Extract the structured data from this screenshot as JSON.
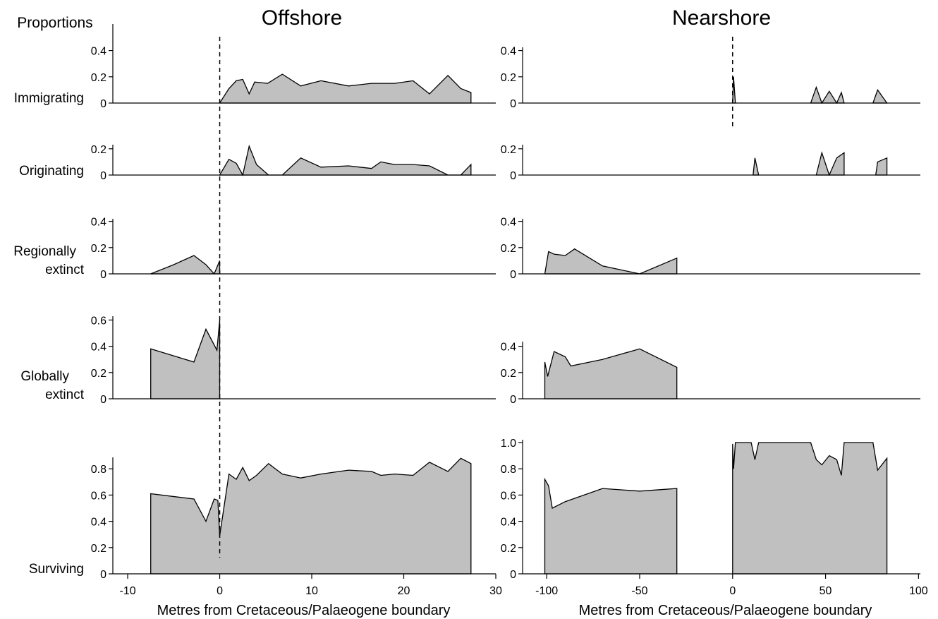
{
  "figure": {
    "y_axis_title": "Proportions",
    "columns": [
      {
        "id": "offshore",
        "title": "Offshore",
        "xlabel": "Metres from Cretaceous/Palaeogene boundary",
        "xlim": [
          -11,
          30
        ],
        "xticks": [
          -10,
          0,
          10,
          20,
          30
        ],
        "xtick_labels": [
          "-10",
          "0",
          "10",
          "20",
          "30"
        ]
      },
      {
        "id": "nearshore",
        "title": "Nearshore",
        "xlabel": "Metres from Cretaceous/Palaeogene boundary",
        "xlim": [
          -105,
          101
        ],
        "xticks": [
          -100,
          -50,
          0,
          50,
          100
        ],
        "xtick_labels": [
          "-100",
          "-50",
          "0",
          "50",
          "100"
        ]
      }
    ],
    "rows": [
      {
        "id": "immigrating",
        "label_lines": [
          "Immigrating"
        ]
      },
      {
        "id": "originating",
        "label_lines": [
          "Originating"
        ]
      },
      {
        "id": "regionally",
        "label_lines": [
          "Regionally",
          "extinct"
        ]
      },
      {
        "id": "globally",
        "label_lines": [
          "Globally",
          "extinct"
        ]
      },
      {
        "id": "surviving",
        "label_lines": [
          "Surviving"
        ]
      }
    ]
  },
  "chart_data": [
    {
      "type": "area",
      "column": "offshore",
      "row": "immigrating",
      "ylim": [
        0,
        0.45
      ],
      "yticks": [
        0,
        0.2,
        0.4
      ],
      "ytick_labels": [
        "0",
        "0.2",
        "0.4"
      ],
      "polygons": [
        [
          [
            0,
            0
          ],
          [
            1,
            0.11
          ],
          [
            1.8,
            0.17
          ],
          [
            2.5,
            0.18
          ],
          [
            3.2,
            0.07
          ],
          [
            3.8,
            0.16
          ],
          [
            5.2,
            0.15
          ],
          [
            6.8,
            0.22
          ],
          [
            8.8,
            0.13
          ],
          [
            11,
            0.17
          ],
          [
            14,
            0.13
          ],
          [
            16.5,
            0.15
          ],
          [
            17.5,
            0.15
          ],
          [
            19,
            0.15
          ],
          [
            21,
            0.17
          ],
          [
            22.8,
            0.07
          ],
          [
            24.8,
            0.21
          ],
          [
            26.2,
            0.11
          ],
          [
            27.3,
            0.08
          ],
          [
            27.3,
            0
          ]
        ]
      ]
    },
    {
      "type": "area",
      "column": "nearshore",
      "row": "immigrating",
      "ylim": [
        0,
        0.45
      ],
      "yticks": [
        0,
        0.2,
        0.4
      ],
      "ytick_labels": [
        "0",
        "0.2",
        "0.4"
      ],
      "polygons": [
        [
          [
            0,
            0
          ],
          [
            0.5,
            0.2
          ],
          [
            1.5,
            0
          ]
        ],
        [
          [
            42,
            0
          ],
          [
            45,
            0.12
          ],
          [
            48,
            0
          ]
        ],
        [
          [
            48,
            0
          ],
          [
            52,
            0.09
          ],
          [
            56,
            0
          ]
        ],
        [
          [
            56,
            0
          ],
          [
            58.5,
            0.08
          ],
          [
            60,
            0
          ]
        ],
        [
          [
            75.5,
            0
          ],
          [
            78,
            0.1
          ],
          [
            83,
            0
          ]
        ]
      ]
    },
    {
      "type": "area",
      "column": "offshore",
      "row": "originating",
      "ylim": [
        0,
        0.22
      ],
      "yticks": [
        0,
        0.2
      ],
      "ytick_labels": [
        "0",
        "0.2"
      ],
      "polygons": [
        [
          [
            0,
            0
          ],
          [
            1,
            0.12
          ],
          [
            1.8,
            0.09
          ],
          [
            2.5,
            0
          ],
          [
            3.2,
            0.22
          ],
          [
            4,
            0.08
          ],
          [
            5.3,
            0
          ],
          [
            6.8,
            0
          ],
          [
            8.8,
            0.13
          ],
          [
            11,
            0.06
          ],
          [
            14,
            0.07
          ],
          [
            16.5,
            0.05
          ],
          [
            17.5,
            0.1
          ],
          [
            19,
            0.08
          ],
          [
            21,
            0.08
          ],
          [
            22.8,
            0.07
          ],
          [
            24.8,
            0
          ],
          [
            26.2,
            0
          ],
          [
            27.3,
            0.08
          ],
          [
            27.3,
            0
          ]
        ]
      ]
    },
    {
      "type": "area",
      "column": "nearshore",
      "row": "originating",
      "ylim": [
        0,
        0.22
      ],
      "yticks": [
        0,
        0.2
      ],
      "ytick_labels": [
        "0",
        "0.2"
      ],
      "polygons": [
        [
          [
            11,
            0
          ],
          [
            12,
            0.13
          ],
          [
            14,
            0
          ]
        ],
        [
          [
            45,
            0
          ],
          [
            48,
            0.17
          ],
          [
            52,
            0
          ]
        ],
        [
          [
            52,
            0
          ],
          [
            56,
            0.13
          ],
          [
            60,
            0.17
          ],
          [
            60,
            0
          ]
        ],
        [
          [
            77,
            0
          ],
          [
            78,
            0.1
          ],
          [
            83,
            0.13
          ],
          [
            83,
            0
          ]
        ]
      ]
    },
    {
      "type": "area",
      "column": "offshore",
      "row": "regionally",
      "ylim": [
        0,
        0.4
      ],
      "yticks": [
        0,
        0.2,
        0.4
      ],
      "ytick_labels": [
        "0",
        "0.2",
        "0.4"
      ],
      "polygons": [
        [
          [
            -7.5,
            0
          ],
          [
            -5,
            0.07
          ],
          [
            -2.8,
            0.14
          ],
          [
            -1.5,
            0.07
          ],
          [
            -0.6,
            0
          ],
          [
            0,
            0.1
          ],
          [
            0,
            0
          ]
        ]
      ]
    },
    {
      "type": "area",
      "column": "nearshore",
      "row": "regionally",
      "ylim": [
        0,
        0.4
      ],
      "yticks": [
        0,
        0.2,
        0.4
      ],
      "ytick_labels": [
        "0",
        "0.2",
        "0.4"
      ],
      "polygons": [
        [
          [
            -101,
            0
          ],
          [
            -99,
            0.17
          ],
          [
            -96,
            0.15
          ],
          [
            -90,
            0.14
          ],
          [
            -85,
            0.19
          ],
          [
            -70,
            0.06
          ],
          [
            -50,
            0
          ],
          [
            -30,
            0.12
          ],
          [
            -30,
            0
          ]
        ]
      ]
    },
    {
      "type": "area",
      "column": "offshore",
      "row": "globally",
      "ylim": [
        0,
        0.6
      ],
      "yticks": [
        0,
        0.2,
        0.4,
        0.6
      ],
      "ytick_labels": [
        "0",
        "0.2",
        "0.4",
        "0.6"
      ],
      "polygons": [
        [
          [
            -7.5,
            0
          ],
          [
            -7.5,
            0.38
          ],
          [
            -2.8,
            0.28
          ],
          [
            -1.5,
            0.53
          ],
          [
            -0.3,
            0.37
          ],
          [
            0,
            0.6
          ],
          [
            0,
            0
          ]
        ]
      ]
    },
    {
      "type": "area",
      "column": "nearshore",
      "row": "globally",
      "ylim": [
        0,
        0.6
      ],
      "yticks": [
        0,
        0.2,
        0.4
      ],
      "ytick_labels": [
        "0",
        "0.2",
        "0.4"
      ],
      "polygons": [
        [
          [
            -101,
            0
          ],
          [
            -101,
            0.28
          ],
          [
            -99.5,
            0.17
          ],
          [
            -96,
            0.36
          ],
          [
            -90,
            0.32
          ],
          [
            -87,
            0.25
          ],
          [
            -70,
            0.3
          ],
          [
            -50,
            0.38
          ],
          [
            -30,
            0.24
          ],
          [
            -30,
            0
          ]
        ]
      ]
    },
    {
      "type": "area",
      "column": "offshore",
      "row": "surviving",
      "ylim": [
        0,
        0.9
      ],
      "yticks": [
        0,
        0.2,
        0.4,
        0.6,
        0.8
      ],
      "ytick_labels": [
        "0",
        "0.2",
        "0.4",
        "0.6",
        "0.8"
      ],
      "polygons": [
        [
          [
            -7.5,
            0
          ],
          [
            -7.5,
            0.61
          ],
          [
            -2.8,
            0.57
          ],
          [
            -1.5,
            0.4
          ],
          [
            -0.6,
            0.57
          ],
          [
            -0.2,
            0.56
          ],
          [
            0,
            0.29
          ],
          [
            1,
            0.76
          ],
          [
            1.8,
            0.72
          ],
          [
            2.5,
            0.81
          ],
          [
            3.2,
            0.71
          ],
          [
            4,
            0.75
          ],
          [
            5.3,
            0.84
          ],
          [
            6.8,
            0.76
          ],
          [
            8.8,
            0.73
          ],
          [
            11,
            0.76
          ],
          [
            14,
            0.79
          ],
          [
            16.5,
            0.78
          ],
          [
            17.5,
            0.75
          ],
          [
            19,
            0.76
          ],
          [
            21,
            0.75
          ],
          [
            22.8,
            0.85
          ],
          [
            24.8,
            0.78
          ],
          [
            26.2,
            0.88
          ],
          [
            27.3,
            0.84
          ],
          [
            27.3,
            0
          ]
        ]
      ]
    },
    {
      "type": "area",
      "column": "nearshore",
      "row": "surviving",
      "ylim": [
        0,
        1.0
      ],
      "yticks": [
        0,
        0.2,
        0.4,
        0.6,
        0.8,
        1.0
      ],
      "ytick_labels": [
        "0",
        "0.2",
        "0.4",
        "0.6",
        "0.8",
        "1.0"
      ],
      "polygons": [
        [
          [
            -101,
            0
          ],
          [
            -101,
            0.72
          ],
          [
            -99,
            0.67
          ],
          [
            -97,
            0.5
          ],
          [
            -90,
            0.55
          ],
          [
            -70,
            0.65
          ],
          [
            -50,
            0.63
          ],
          [
            -30,
            0.65
          ],
          [
            -30,
            0
          ]
        ],
        [
          [
            0,
            0
          ],
          [
            0,
            0.99
          ],
          [
            0.5,
            0.8
          ],
          [
            1.5,
            1.0
          ],
          [
            10,
            1.0
          ],
          [
            12,
            0.87
          ],
          [
            14,
            1.0
          ],
          [
            42,
            1.0
          ],
          [
            45,
            0.87
          ],
          [
            48,
            0.83
          ],
          [
            52,
            0.9
          ],
          [
            56,
            0.87
          ],
          [
            58.5,
            0.75
          ],
          [
            60,
            1.0
          ],
          [
            75.5,
            1.0
          ],
          [
            78,
            0.79
          ],
          [
            83,
            0.88
          ],
          [
            83,
            0
          ]
        ]
      ]
    }
  ]
}
